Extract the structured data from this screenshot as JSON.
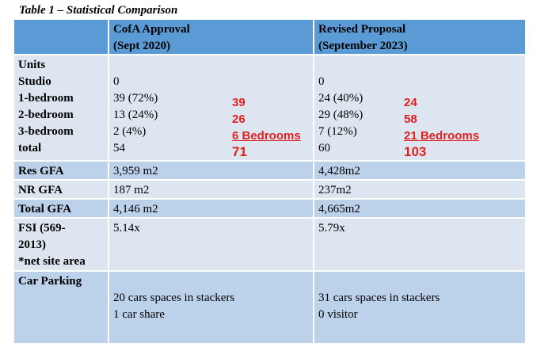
{
  "caption": "Table 1 –  Statistical Comparison",
  "header": {
    "col2_line1": "CofA Approval",
    "col2_line2": "(Sept 2020)",
    "col3_line1": "Revised Proposal",
    "col3_line2": "(September 2023)"
  },
  "units": {
    "labels": [
      "Units",
      "Studio",
      "1-bedroom",
      "2-bedroom",
      "3-bedroom",
      "total"
    ],
    "cofa": [
      "",
      "0",
      "39 (72%)",
      "13 (24%)",
      "2 (4%)",
      "54"
    ],
    "revised": [
      "",
      "0",
      "24 (40%)",
      "29 (48%)",
      "7 (12%)",
      "60"
    ],
    "cofa_notes": [
      "39",
      "26",
      "6  Bedrooms",
      "71"
    ],
    "revised_notes": [
      "24",
      "58",
      "21  Bedrooms",
      "103"
    ]
  },
  "res_gfa": {
    "label": "Res GFA",
    "cofa": "3,959 m2",
    "revised": "4,428m2"
  },
  "nr_gfa": {
    "label": "NR GFA",
    "cofa": "187 m2",
    "revised": "237m2"
  },
  "total_gfa": {
    "label": "Total GFA",
    "cofa": "4,146 m2",
    "revised": "4,665m2"
  },
  "fsi": {
    "label_lines": [
      "FSI (569-",
      "2013)",
      "*net site area"
    ],
    "cofa": "5.14x",
    "revised": "5.79x"
  },
  "parking": {
    "label": "Car Parking",
    "cofa_lines": [
      "20 cars spaces in stackers",
      "1 car share"
    ],
    "revised_lines": [
      "31 cars spaces in stackers",
      "0 visitor"
    ]
  },
  "colors": {
    "header": "#5b9bd5",
    "row_light": "#dde6f0",
    "row_dark": "#bcd1ea",
    "note_red": "#e02020"
  }
}
